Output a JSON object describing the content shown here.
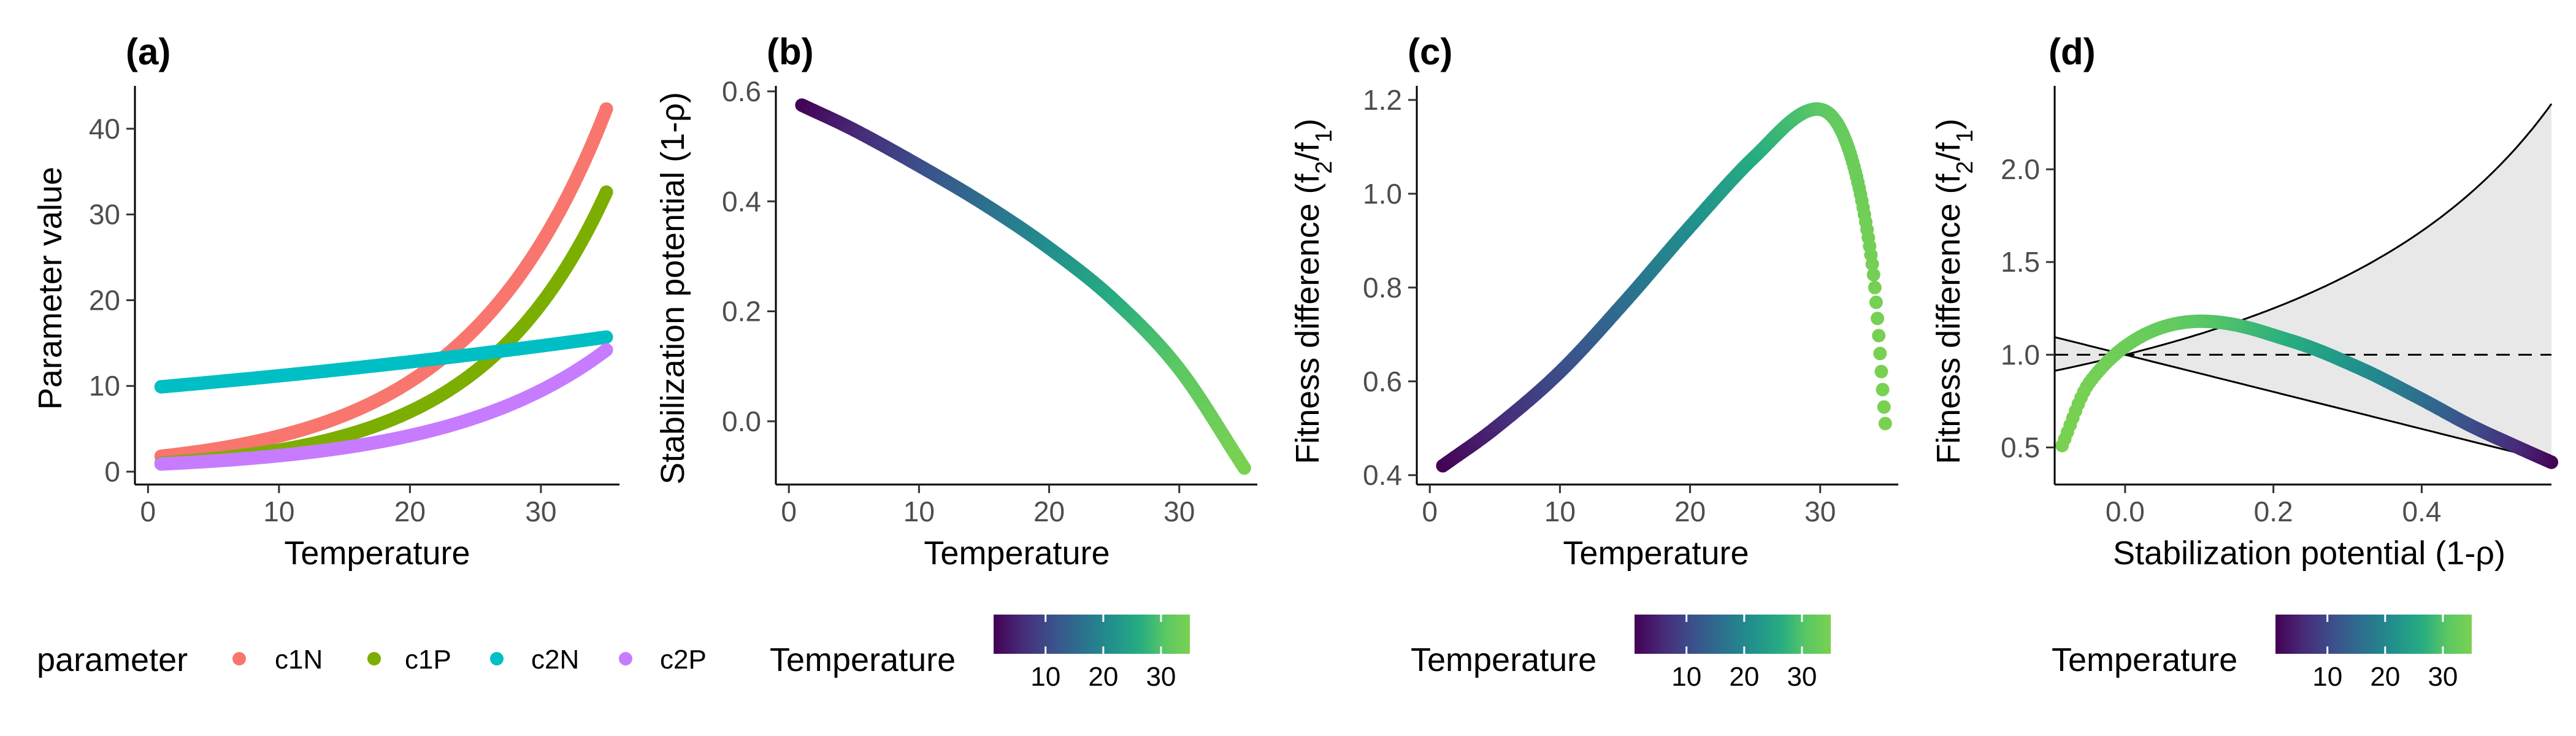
{
  "chart_data": [
    {
      "panel": "(a)",
      "type": "scatter",
      "xlabel": "Temperature",
      "ylabel": "Parameter value",
      "xlim": [
        -1,
        36
      ],
      "ylim": [
        -1.5,
        45
      ],
      "xticks": [
        0,
        10,
        20,
        30
      ],
      "yticks": [
        0,
        10,
        20,
        30,
        40
      ],
      "x_range": [
        1,
        35
      ],
      "series": [
        {
          "name": "c1N",
          "color": "#F8766D",
          "y_at_1": 1.8,
          "y_at_35": 42.3
        },
        {
          "name": "c1P",
          "color": "#7CAE00",
          "y_at_1": 1.0,
          "y_at_35": 32.6
        },
        {
          "name": "c2N",
          "color": "#00BFC4",
          "y_at_1": 9.9,
          "y_at_35": 15.7
        },
        {
          "name": "c2P",
          "color": "#C77CFF",
          "y_at_1": 0.9,
          "y_at_35": 14.2
        }
      ],
      "legend": {
        "title": "parameter",
        "labels": [
          "c1N",
          "c1P",
          "c2N",
          "c2P"
        ]
      }
    },
    {
      "panel": "(b)",
      "type": "scatter",
      "xlabel": "Temperature",
      "ylabel": "Stabilization potential (1-ρ)",
      "xlim": [
        -1,
        36
      ],
      "ylim": [
        -0.115,
        0.61
      ],
      "xticks": [
        0,
        10,
        20,
        30
      ],
      "yticks": [
        0.0,
        0.2,
        0.4,
        0.6
      ],
      "points": [
        {
          "x": 1,
          "y": 0.575
        },
        {
          "x": 5,
          "y": 0.53
        },
        {
          "x": 10,
          "y": 0.465
        },
        {
          "x": 15,
          "y": 0.395
        },
        {
          "x": 20,
          "y": 0.315
        },
        {
          "x": 25,
          "y": 0.22
        },
        {
          "x": 30,
          "y": 0.095
        },
        {
          "x": 35,
          "y": -0.085
        }
      ],
      "colorbar": {
        "title": "Temperature",
        "ticks": [
          10,
          20,
          30
        ],
        "range": [
          1,
          35
        ]
      }
    },
    {
      "panel": "(c)",
      "type": "scatter",
      "xlabel": "Temperature",
      "ylabel": "Fitness difference (f2/f1)",
      "xlim": [
        -1,
        36
      ],
      "ylim": [
        0.38,
        1.23
      ],
      "xticks": [
        0,
        10,
        20,
        30
      ],
      "yticks": [
        0.4,
        0.6,
        0.8,
        1.0,
        1.2
      ],
      "points": [
        {
          "x": 1,
          "y": 0.42
        },
        {
          "x": 5,
          "y": 0.5
        },
        {
          "x": 10,
          "y": 0.62
        },
        {
          "x": 15,
          "y": 0.77
        },
        {
          "x": 20,
          "y": 0.93
        },
        {
          "x": 25,
          "y": 1.08
        },
        {
          "x": 29.5,
          "y": 1.18
        },
        {
          "x": 32,
          "y": 1.11
        },
        {
          "x": 34,
          "y": 0.85
        },
        {
          "x": 35,
          "y": 0.51
        }
      ],
      "colorbar": {
        "title": "Temperature",
        "ticks": [
          10,
          20,
          30
        ],
        "range": [
          1,
          35
        ]
      }
    },
    {
      "panel": "(d)",
      "type": "scatter",
      "xlabel": "Stabilization potential (1-ρ)",
      "ylabel": "Fitness difference (f2/f1)",
      "xlim": [
        -0.095,
        0.575
      ],
      "ylim": [
        0.3,
        2.45
      ],
      "xticks": [
        0.0,
        0.2,
        0.4
      ],
      "yticks": [
        0.5,
        1.0,
        1.5,
        2.0
      ],
      "reference_line": {
        "y": 1.0,
        "style": "dashed"
      },
      "coexistence_region": "shaded between f = 1-s and f = 1/(1-s)",
      "colorbar": {
        "title": "Temperature",
        "ticks": [
          10,
          20,
          30
        ],
        "range": [
          1,
          35
        ]
      }
    }
  ],
  "colors": {
    "viridis": [
      "#440154",
      "#472C7A",
      "#3B518B",
      "#2C718E",
      "#21908D",
      "#27AD81",
      "#5CC863",
      "#7AD151"
    ],
    "band_fill": "#e8e8e8",
    "axis": "#000000",
    "tick_label": "#4d4d4d"
  }
}
